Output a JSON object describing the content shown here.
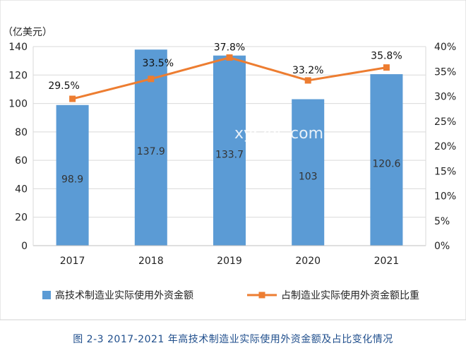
{
  "chart_data": {
    "type": "bar",
    "unit_left": "（亿美元）",
    "categories": [
      "2017",
      "2018",
      "2019",
      "2020",
      "2021"
    ],
    "y_left": {
      "ticks": [
        "0",
        "20",
        "40",
        "60",
        "80",
        "100",
        "120",
        "140"
      ],
      "ylim": [
        0,
        140
      ]
    },
    "y_right": {
      "ticks": [
        "0%",
        "5%",
        "10%",
        "15%",
        "20%",
        "25%",
        "30%",
        "35%",
        "40%"
      ],
      "ylim": [
        0,
        40
      ]
    },
    "grid": true,
    "series": [
      {
        "name": "高技术制造业实际使用外资金额",
        "type": "bar",
        "axis": "left",
        "color": "#5b9bd5",
        "values": [
          98.9,
          137.9,
          133.7,
          103,
          120.6
        ],
        "labels": [
          "98.9",
          "137.9",
          "133.7",
          "103",
          "120.6"
        ]
      },
      {
        "name": "占制造业实际使用外资金额比重",
        "type": "line",
        "axis": "right",
        "color": "#ed7d31",
        "values": [
          29.5,
          33.5,
          37.8,
          33.2,
          35.8
        ],
        "labels": [
          "29.5%",
          "33.5%",
          "37.8%",
          "33.2%",
          "35.8%"
        ]
      }
    ],
    "legend_position": "bottom",
    "watermark": "xyrzgs.com"
  },
  "caption": "图 2-3   2017-2021 年高技术制造业实际使用外资金额及占比变化情况"
}
